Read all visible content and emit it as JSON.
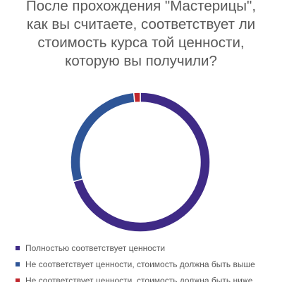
{
  "chart_data": {
    "type": "pie",
    "title": "После прохождения \"Мастерицы\", как вы считаете, соответствует ли стоимость курса той ценности, которую вы получили?",
    "title_lines": [
      "После прохождения \"Мастерицы\",",
      "как вы считаете, соответствует ли",
      "стоимость курса той ценности,",
      "которую вы получили?"
    ],
    "donut": true,
    "legend_position": "bottom",
    "categories": [
      "Полностью соответствует ценности",
      "Не соответствует ценности, стоимость должна быть выше",
      "Не соответствует ценности, стоимость должна быть ниже"
    ],
    "values": [
      70.5,
      28.0,
      1.5
    ],
    "colors": [
      "#3f2a86",
      "#2e5597",
      "#c0262c"
    ]
  }
}
